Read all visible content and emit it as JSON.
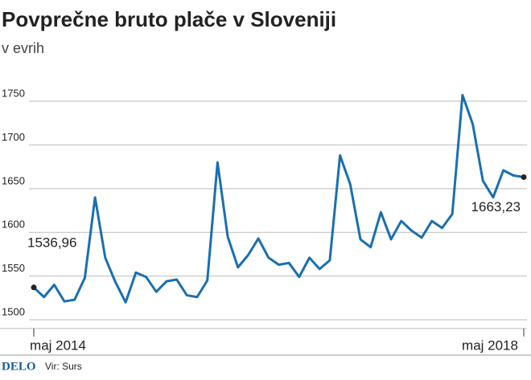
{
  "chart_data": {
    "type": "line",
    "title": "Povprečne bruto plače v Sloveniji",
    "subtitle": "v evrih",
    "categories": [
      "maj 2014",
      null,
      null,
      null,
      null,
      null,
      null,
      null,
      null,
      null,
      null,
      null,
      null,
      null,
      null,
      null,
      null,
      null,
      null,
      null,
      null,
      null,
      null,
      null,
      null,
      null,
      null,
      null,
      null,
      null,
      null,
      null,
      null,
      null,
      null,
      null,
      null,
      null,
      null,
      null,
      null,
      null,
      null,
      null,
      null,
      null,
      null,
      null,
      "maj 2018"
    ],
    "values": [
      1536.96,
      1526,
      1540,
      1521,
      1523,
      1548,
      1640,
      1571,
      1543,
      1520,
      1554,
      1549,
      1532,
      1544,
      1546,
      1528,
      1526,
      1545,
      1680,
      1595,
      1560,
      1574,
      1593,
      1571,
      1563,
      1565,
      1549,
      1571,
      1558,
      1568,
      1688,
      1655,
      1592,
      1583,
      1623,
      1592,
      1613,
      1602,
      1594,
      1613,
      1605,
      1621,
      1757,
      1724,
      1659,
      1640,
      1671,
      1665,
      1663.23
    ],
    "value_labels": [
      "1536,96",
      null,
      null,
      null,
      null,
      null,
      null,
      null,
      null,
      null,
      null,
      null,
      null,
      null,
      null,
      null,
      null,
      null,
      null,
      null,
      null,
      null,
      null,
      null,
      null,
      null,
      null,
      null,
      null,
      null,
      null,
      null,
      null,
      null,
      null,
      null,
      null,
      null,
      null,
      null,
      null,
      null,
      null,
      null,
      null,
      null,
      null,
      null,
      "1663,23"
    ],
    "color": "#1a6fb0",
    "ylim": [
      1490,
      1780
    ],
    "yticks": [
      1500,
      1550,
      1600,
      1650,
      1700,
      1750
    ],
    "grid": true,
    "logo": "DELO",
    "source": "Vir: Surs"
  }
}
